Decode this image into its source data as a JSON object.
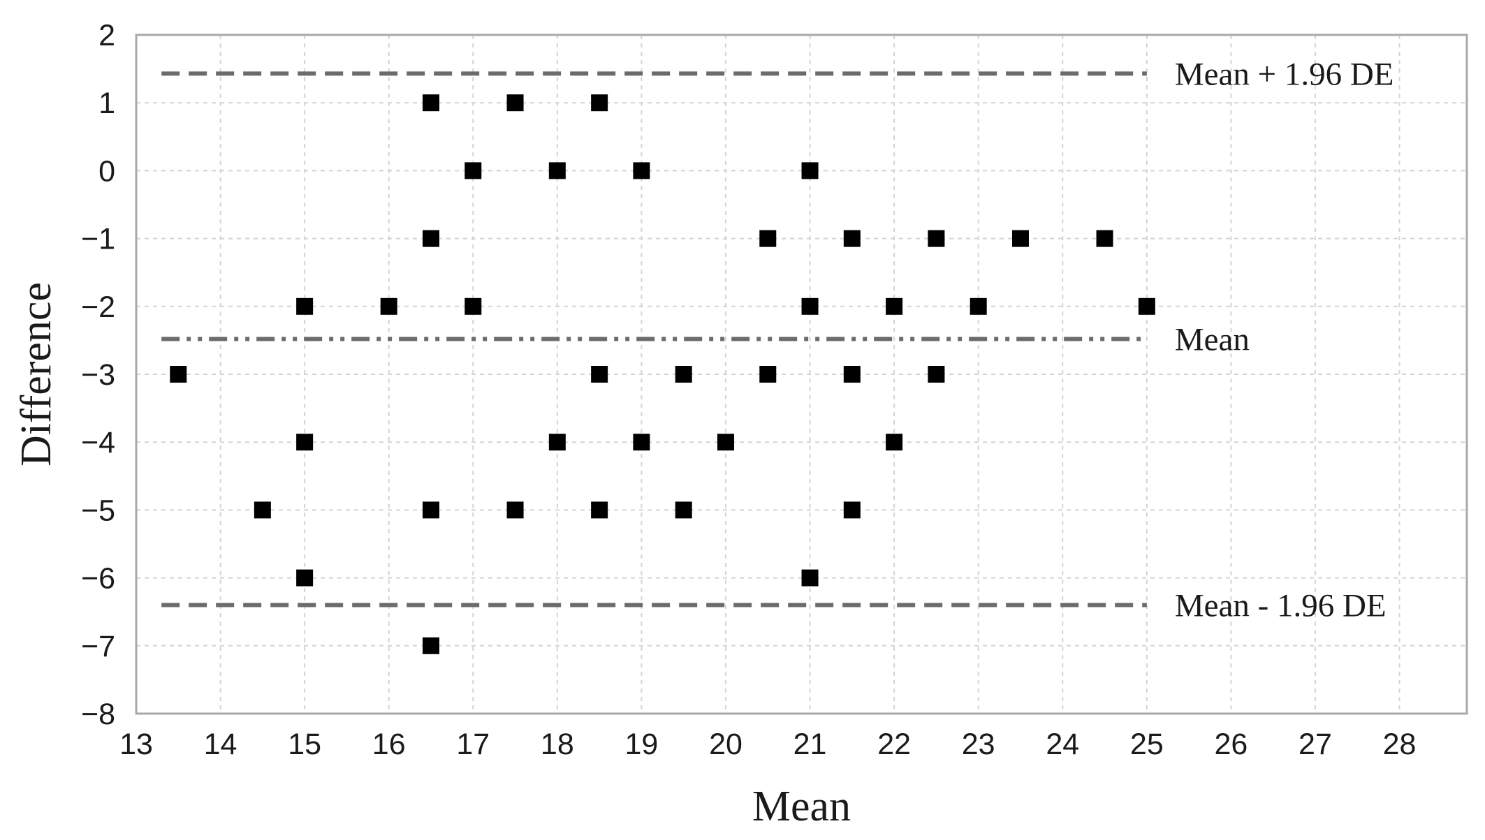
{
  "chart_data": {
    "type": "scatter",
    "title": "",
    "xlabel": "Mean",
    "ylabel": "Difference",
    "xlim": [
      13,
      28.8
    ],
    "ylim": [
      -8,
      2
    ],
    "xticks": [
      13,
      14,
      15,
      16,
      17,
      18,
      19,
      20,
      21,
      22,
      23,
      24,
      25,
      26,
      27,
      28
    ],
    "yticks": [
      2,
      1,
      0,
      -1,
      -2,
      -3,
      -4,
      -5,
      -6,
      -7,
      -8
    ],
    "xtick_labels": [
      "13",
      "14",
      "15",
      "16",
      "17",
      "18",
      "19",
      "20",
      "21",
      "22",
      "23",
      "24",
      "25",
      "26",
      "27",
      "28"
    ],
    "ytick_labels": [
      "2",
      "1",
      "0",
      "−1",
      "−2",
      "−3",
      "−4",
      "−5",
      "−6",
      "−7",
      "−8"
    ],
    "grid": true,
    "marker": "square",
    "colors": {
      "points": "#000000",
      "reference_lines": "#6b6b6b",
      "grid": "#d4d4d4",
      "frame": "#a8a8a8"
    },
    "points": [
      {
        "x": 13.5,
        "y": -3
      },
      {
        "x": 14.5,
        "y": -5
      },
      {
        "x": 15,
        "y": -2
      },
      {
        "x": 15,
        "y": -4
      },
      {
        "x": 15,
        "y": -6
      },
      {
        "x": 16,
        "y": -2
      },
      {
        "x": 16.5,
        "y": 1
      },
      {
        "x": 16.5,
        "y": -1
      },
      {
        "x": 16.5,
        "y": -5
      },
      {
        "x": 16.5,
        "y": -7
      },
      {
        "x": 17,
        "y": 0
      },
      {
        "x": 17,
        "y": -2
      },
      {
        "x": 17.5,
        "y": 1
      },
      {
        "x": 17.5,
        "y": -5
      },
      {
        "x": 18,
        "y": 0
      },
      {
        "x": 18,
        "y": -4
      },
      {
        "x": 18.5,
        "y": 1
      },
      {
        "x": 18.5,
        "y": -3
      },
      {
        "x": 18.5,
        "y": -5
      },
      {
        "x": 19,
        "y": 0
      },
      {
        "x": 19,
        "y": -4
      },
      {
        "x": 19.5,
        "y": -3
      },
      {
        "x": 19.5,
        "y": -5
      },
      {
        "x": 20,
        "y": -4
      },
      {
        "x": 20.5,
        "y": -1
      },
      {
        "x": 20.5,
        "y": -3
      },
      {
        "x": 21,
        "y": 0
      },
      {
        "x": 21,
        "y": -2
      },
      {
        "x": 21,
        "y": -6
      },
      {
        "x": 21.5,
        "y": -1
      },
      {
        "x": 21.5,
        "y": -3
      },
      {
        "x": 21.5,
        "y": -5
      },
      {
        "x": 22,
        "y": -2
      },
      {
        "x": 22,
        "y": -4
      },
      {
        "x": 22.5,
        "y": -1
      },
      {
        "x": 22.5,
        "y": -3
      },
      {
        "x": 23,
        "y": -2
      },
      {
        "x": 23.5,
        "y": -1
      },
      {
        "x": 24.5,
        "y": -1
      },
      {
        "x": 25,
        "y": -2
      }
    ],
    "reference_lines": [
      {
        "label": "Mean + 1.96 DE",
        "y": 1.43,
        "x_range": [
          13.3,
          25
        ],
        "style": "dashed"
      },
      {
        "label": "Mean",
        "y": -2.48,
        "x_range": [
          13.3,
          25
        ],
        "style": "dash-dot-dot"
      },
      {
        "label": "Mean - 1.96 DE",
        "y": -6.4,
        "x_range": [
          13.3,
          25
        ],
        "style": "dashed"
      }
    ]
  }
}
